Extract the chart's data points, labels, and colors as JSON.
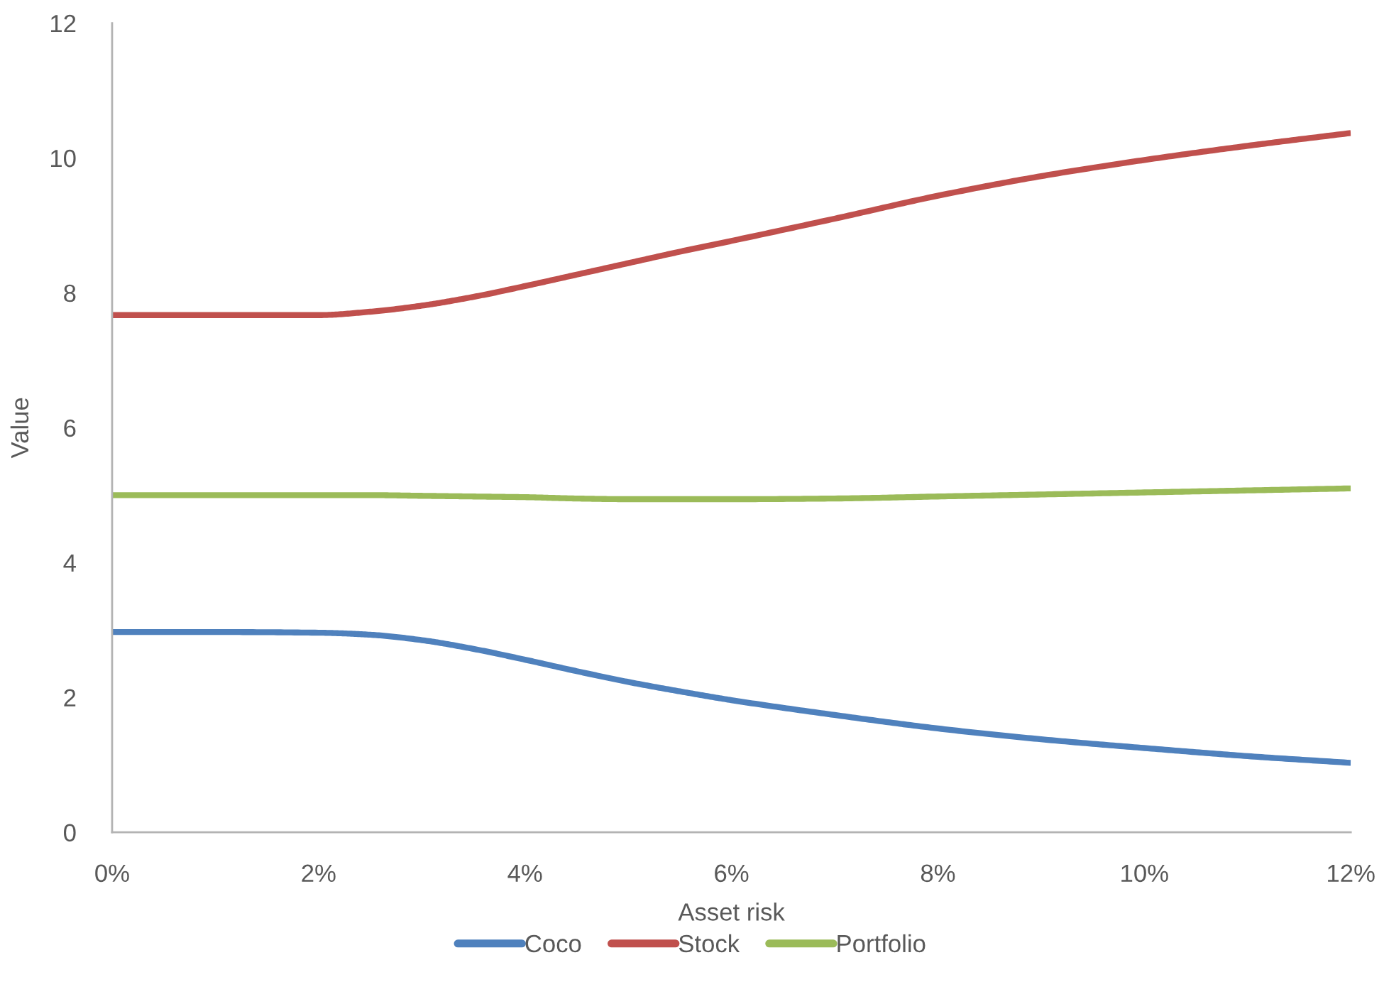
{
  "chart_data": {
    "type": "line",
    "xlabel": "Asset risk",
    "ylabel": "Value",
    "x": [
      0,
      1,
      2,
      2.5,
      3,
      3.5,
      4,
      4.5,
      5,
      5.5,
      6,
      7,
      8,
      9,
      10,
      11,
      12
    ],
    "series": [
      {
        "name": "Coco",
        "color": "#4f81bd",
        "values": [
          2.97,
          2.97,
          2.96,
          2.93,
          2.85,
          2.72,
          2.56,
          2.39,
          2.23,
          2.09,
          1.96,
          1.74,
          1.54,
          1.38,
          1.25,
          1.13,
          1.03
        ]
      },
      {
        "name": "Stock",
        "color": "#c0504d",
        "values": [
          7.67,
          7.67,
          7.67,
          7.72,
          7.81,
          7.94,
          8.1,
          8.27,
          8.44,
          8.61,
          8.77,
          9.1,
          9.44,
          9.73,
          9.97,
          10.18,
          10.37
        ]
      },
      {
        "name": "Portfolio",
        "color": "#9bbb59",
        "values": [
          5.0,
          5.0,
          5.0,
          5.0,
          4.99,
          4.98,
          4.97,
          4.95,
          4.94,
          4.94,
          4.94,
          4.95,
          4.98,
          5.01,
          5.04,
          5.07,
          5.1
        ]
      }
    ],
    "xlim": [
      0,
      12
    ],
    "ylim": [
      0,
      12
    ],
    "xticks": [
      {
        "value": 0,
        "label": "0%"
      },
      {
        "value": 2,
        "label": "2%"
      },
      {
        "value": 4,
        "label": "4%"
      },
      {
        "value": 6,
        "label": "6%"
      },
      {
        "value": 8,
        "label": "8%"
      },
      {
        "value": 10,
        "label": "10%"
      },
      {
        "value": 12,
        "label": "12%"
      }
    ],
    "yticks": [
      0,
      2,
      4,
      6,
      8,
      10,
      12
    ],
    "legend": "bottom"
  }
}
